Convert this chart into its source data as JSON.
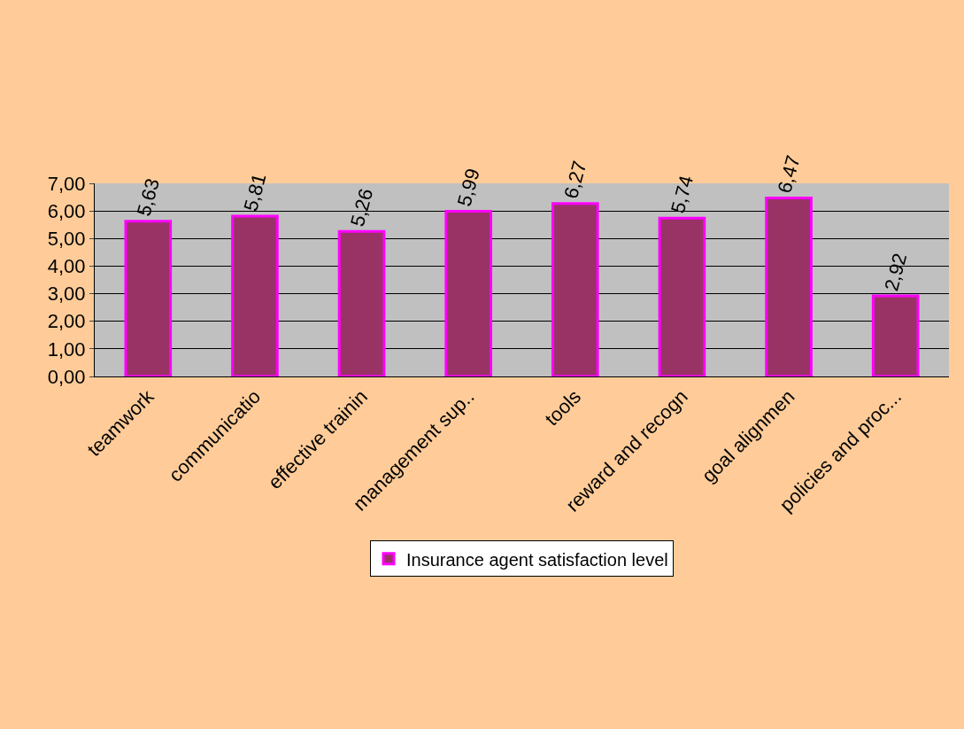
{
  "chart_data": {
    "type": "bar",
    "categories": [
      "teamwork",
      "communicatio",
      "effective trainin",
      "management sup..",
      "tools",
      "reward and recogn",
      "goal alignmen",
      "policies and proc..."
    ],
    "series": [
      {
        "name": "Insurance agent satisfaction level",
        "color": "#993366",
        "values": [
          5.63,
          5.81,
          5.26,
          5.99,
          6.27,
          5.74,
          6.47,
          2.92
        ],
        "value_labels": [
          "5,63",
          "5,81",
          "5,26",
          "5,99",
          "6,27",
          "5,74",
          "6,47",
          "2,92"
        ]
      }
    ],
    "ylim": [
      0,
      7
    ],
    "yticks": [
      {
        "value": 0,
        "label": "0,00"
      },
      {
        "value": 1,
        "label": "1,00"
      },
      {
        "value": 2,
        "label": "2,00"
      },
      {
        "value": 3,
        "label": "3,00"
      },
      {
        "value": 4,
        "label": "4,00"
      },
      {
        "value": 5,
        "label": "5,00"
      },
      {
        "value": 6,
        "label": "6,00"
      },
      {
        "value": 7,
        "label": "7,00"
      }
    ],
    "grid": "y",
    "legend": "bottom"
  }
}
